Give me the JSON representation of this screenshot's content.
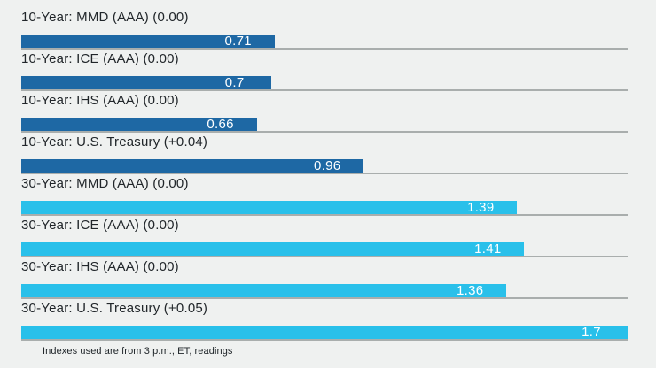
{
  "chart_data": {
    "type": "bar",
    "orientation": "horizontal",
    "title": "",
    "xlabel": "",
    "ylabel": "",
    "xlim": [
      0,
      1.7
    ],
    "grid": "per-row baseline only",
    "legend": "none",
    "rows": [
      {
        "label": "10-Year: MMD (AAA) (0.00)",
        "value": 0.71,
        "value_label": "0.71",
        "group": "10-year"
      },
      {
        "label": "10-Year: ICE (AAA) (0.00)",
        "value": 0.7,
        "value_label": "0.7",
        "group": "10-year"
      },
      {
        "label": "10-Year: IHS (AAA) (0.00)",
        "value": 0.66,
        "value_label": "0.66",
        "group": "10-year"
      },
      {
        "label": "10-Year: U.S. Treasury (+0.04)",
        "value": 0.96,
        "value_label": "0.96",
        "group": "10-year"
      },
      {
        "label": "30-Year: MMD (AAA) (0.00)",
        "value": 1.39,
        "value_label": "1.39",
        "group": "30-year"
      },
      {
        "label": "30-Year: ICE (AAA) (0.00)",
        "value": 1.41,
        "value_label": "1.41",
        "group": "30-year"
      },
      {
        "label": "30-Year: IHS (AAA) (0.00)",
        "value": 1.36,
        "value_label": "1.36",
        "group": "30-year"
      },
      {
        "label": "30-Year: U.S. Treasury (+0.05)",
        "value": 1.7,
        "value_label": "1.7",
        "group": "30-year"
      }
    ],
    "colors": {
      "ten_year_bar": "#1e68a4",
      "thirty_year_bar": "#29c0ea",
      "background": "#eff1f0",
      "gridline": "#a9aead",
      "label_text": "#21262a",
      "value_text": "#ffffff"
    }
  },
  "footnote": "Indexes used are from 3 p.m., ET, readings"
}
